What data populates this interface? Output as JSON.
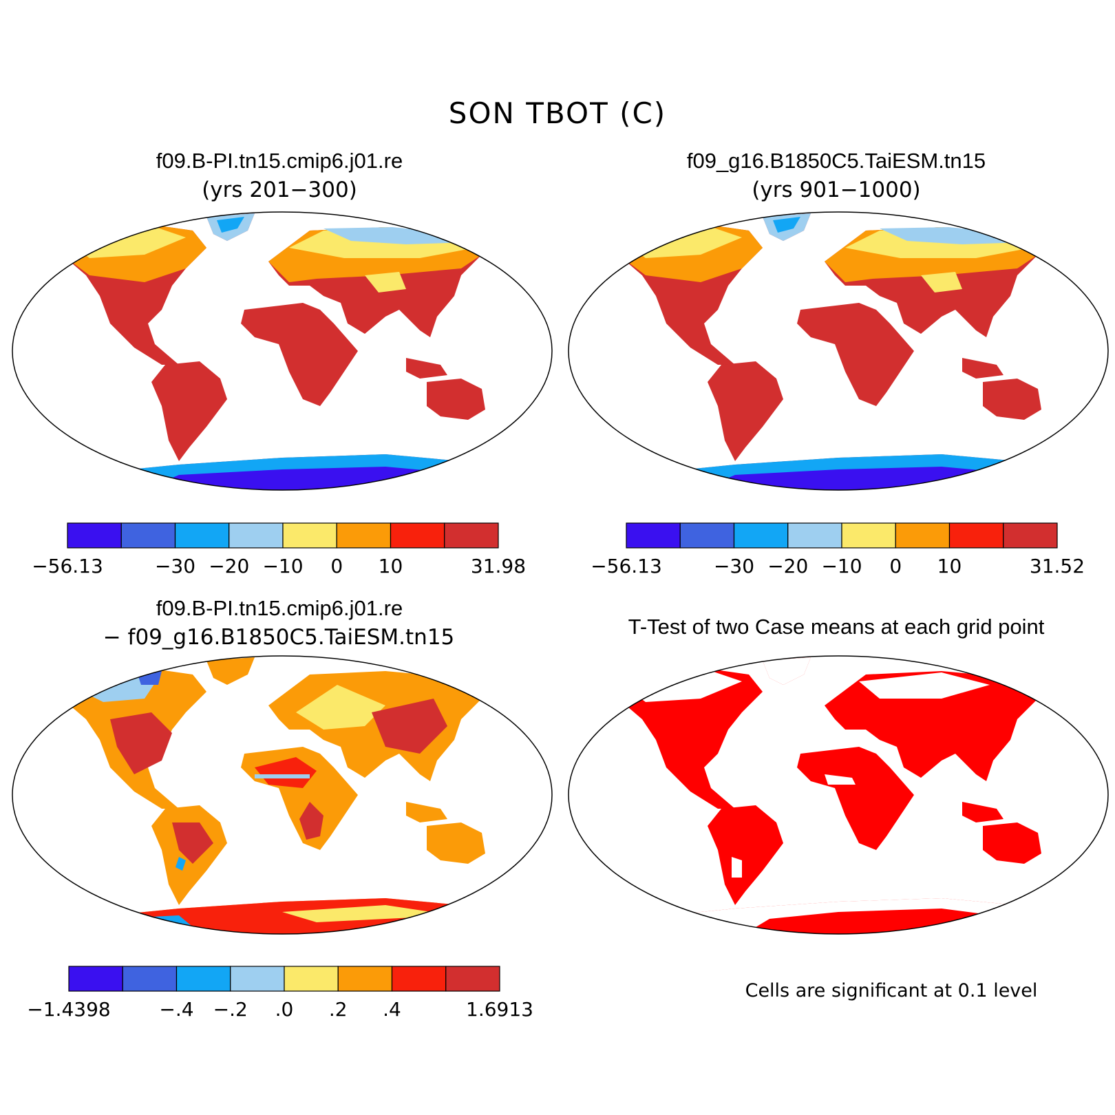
{
  "title": "SON TBOT (C)",
  "panels": [
    {
      "id": "case1",
      "title": "f09.B-PI.tn15.cmip6.j01.re",
      "subtitle": "(yrs 201−300)",
      "colorbar": {
        "colors": [
          "#3a10f0",
          "#3f63e0",
          "#12a6f5",
          "#9ecff0",
          "#fbe96a",
          "#fb9b08",
          "#f8210c",
          "#d22f2f"
        ],
        "labels": [
          "−56.13",
          "−30",
          "−20",
          "−10",
          "0",
          "10",
          "31.98"
        ]
      }
    },
    {
      "id": "case2",
      "title": "f09_g16.B1850C5.TaiESM.tn15",
      "subtitle": "(yrs 901−1000)",
      "colorbar": {
        "colors": [
          "#3a10f0",
          "#3f63e0",
          "#12a6f5",
          "#9ecff0",
          "#fbe96a",
          "#fb9b08",
          "#f8210c",
          "#d22f2f"
        ],
        "labels": [
          "−56.13",
          "−30",
          "−20",
          "−10",
          "0",
          "10",
          "31.52"
        ]
      }
    },
    {
      "id": "diff",
      "title": "f09.B-PI.tn15.cmip6.j01.re",
      "subtitle": "− f09_g16.B1850C5.TaiESM.tn15",
      "colorbar": {
        "colors": [
          "#3a10f0",
          "#3f63e0",
          "#12a6f5",
          "#9ecff0",
          "#fbe96a",
          "#fb9b08",
          "#f8210c",
          "#d22f2f"
        ],
        "labels": [
          "−1.4398",
          "−.4",
          "−.2",
          ".0",
          ".2",
          ".4",
          "1.6913"
        ]
      }
    },
    {
      "id": "ttest",
      "title": "T-Test of two Case means at each grid point",
      "note": "Cells are significant at 0.1 level",
      "fill_color": "#ff0000"
    }
  ]
}
